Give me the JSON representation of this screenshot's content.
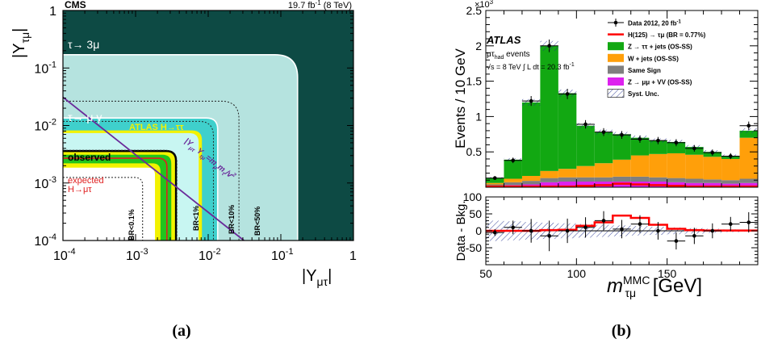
{
  "panel_a": {
    "label": "(a)",
    "experiment": "CMS",
    "luminosity": "19.7 fb",
    "luminosity_exp": "-1",
    "energy": "(8 TeV)",
    "ylabel_main": "|Y",
    "ylabel_sub": "τμ",
    "xlabel_main": "|Y",
    "xlabel_sub": "μτ",
    "colors": {
      "outer": "#0d4a44",
      "mid": "#b5e3df",
      "cyan": "#3fd0cc",
      "white": "#ffffff",
      "yellow": "#f2f200",
      "green": "#22c41d",
      "excl": "#c8f6f2"
    },
    "chart_data": {
      "type": "contour",
      "x_scale": "log",
      "y_scale": "log",
      "xlim": [
        0.0001,
        1
      ],
      "ylim": [
        0.0001,
        1
      ],
      "x_ticks": [
        "10^-4",
        "10^-3",
        "10^-2",
        "10^-1",
        "1"
      ],
      "y_ticks": [
        "10^-4",
        "10^-3",
        "10^-2",
        "10^-1",
        "1"
      ],
      "annotations": [
        {
          "text": "τ→ 3μ",
          "corner": 0.17
        },
        {
          "text": "τ→ μ γ",
          "corner": 0.0135
        },
        {
          "text": "ATLAS H→ττ",
          "corner": 0.0082
        },
        {
          "text": "observed",
          "corner": 0.0036
        },
        {
          "text": "expected",
          "corner": 0.0024
        },
        {
          "text": "H→μτ"
        },
        {
          "text": "BR<0.1%",
          "corner": 0.00125
        },
        {
          "text": "BR<1%",
          "corner": 0.0037
        },
        {
          "text": "BR<10%",
          "corner": 0.0118
        },
        {
          "text": "BR<50%",
          "corner": 0.0265
        }
      ],
      "naturalness_label": "|Y",
      "naturalness_label_rest": "=m",
      "naturalness_label_tail": "m",
      "naturalness_label_end": "/v",
      "naturalness_label_exp": "2",
      "naturalness_label_sub1": "μτ",
      "naturalness_label_sub2": "τμ",
      "naturalness_label_sub3": "μ",
      "naturalness_label_sub4": "τ",
      "naturalness_label_mid": " Y"
    }
  },
  "panel_b": {
    "label": "(b)",
    "experiment": "ATLAS",
    "channel": "μτ",
    "channel_sub": "had",
    "channel_rest": " events",
    "energy_text": "√s = 8 TeV",
    "lumi_text": "∫ L dt = 20.3 fb",
    "lumi_exp": "-1",
    "scale_base": "×10",
    "scale_exp": "3",
    "ylabel_top": "Events / 10 GeV",
    "ylabel_bottom": "Data - Bkg.",
    "xlabel_main": "m",
    "xlabel_sup": "MMC",
    "xlabel_sub": "τμ",
    "xlabel_unit": " [GeV]",
    "legend": [
      {
        "text": "Data 2012, 20 fb",
        "exp": "-1",
        "kind": "data"
      },
      {
        "text": "H(125) → τμ (BR = 0.77%)",
        "kind": "line",
        "color": "#ff0000"
      },
      {
        "text": "Z → ττ + jets (OS-SS)",
        "kind": "box",
        "color": "#12a812"
      },
      {
        "text": "W + jets (OS-SS)",
        "kind": "box",
        "color": "#ff9f0a"
      },
      {
        "text": "Same Sign",
        "kind": "box",
        "color": "#7f7f7f"
      },
      {
        "text": "Z → μμ + VV (OS-SS)",
        "kind": "box",
        "color": "#dd22ee"
      },
      {
        "text": "Syst. Unc.",
        "kind": "hatch",
        "color": "#000000"
      }
    ],
    "chart_data": {
      "type": "bar",
      "stacked": true,
      "bins_edges": [
        50,
        60,
        70,
        80,
        90,
        100,
        110,
        120,
        130,
        140,
        150,
        160,
        170,
        180,
        190,
        200
      ],
      "xlim": [
        50,
        200
      ],
      "ylim": [
        0,
        2.5
      ],
      "y_unit_scale": "x10^3",
      "x_ticks": [
        50,
        100,
        150
      ],
      "y_ticks": [
        0.5,
        1,
        1.5,
        2,
        2.5
      ],
      "series": [
        {
          "name": "Z → μμ + VV (OS-SS)",
          "color": "#dd22ee",
          "values": [
            0.02,
            0.03,
            0.04,
            0.07,
            0.08,
            0.08,
            0.08,
            0.08,
            0.08,
            0.08,
            0.07,
            0.06,
            0.06,
            0.05,
            0.06
          ]
        },
        {
          "name": "Same Sign",
          "color": "#7f7f7f",
          "values": [
            0.02,
            0.04,
            0.05,
            0.06,
            0.06,
            0.06,
            0.06,
            0.07,
            0.07,
            0.06,
            0.06,
            0.06,
            0.05,
            0.05,
            0.06
          ]
        },
        {
          "name": "W + jets (OS-SS)",
          "color": "#ff9f0a",
          "values": [
            0.02,
            0.05,
            0.07,
            0.1,
            0.12,
            0.16,
            0.2,
            0.24,
            0.3,
            0.33,
            0.35,
            0.34,
            0.32,
            0.3,
            0.58
          ]
        },
        {
          "name": "Z → ττ + jets (OS-SS)",
          "color": "#12a812",
          "values": [
            0.07,
            0.27,
            1.04,
            1.77,
            1.07,
            0.57,
            0.44,
            0.36,
            0.25,
            0.19,
            0.16,
            0.11,
            0.07,
            0.04,
            0.1
          ]
        }
      ],
      "data_points": [
        0.13,
        0.38,
        1.22,
        2.0,
        1.32,
        0.89,
        0.78,
        0.74,
        0.68,
        0.66,
        0.63,
        0.55,
        0.49,
        0.44,
        0.87
      ],
      "signal": [
        0.01,
        0.01,
        0.01,
        0.01,
        0.01,
        0.02,
        0.03,
        0.05,
        0.04,
        0.03,
        0.02,
        0.01,
        0.01,
        0.01,
        0.01
      ],
      "ratio": {
        "ylim": [
          -100,
          100
        ],
        "y_ticks": [
          -50,
          0,
          50,
          100
        ],
        "data_minus_bkg": [
          -5,
          10,
          0,
          -15,
          0,
          10,
          30,
          5,
          20,
          0,
          -30,
          -15,
          0,
          20,
          25
        ],
        "errors": [
          10,
          20,
          35,
          45,
          36,
          30,
          28,
          27,
          26,
          26,
          25,
          24,
          22,
          21,
          30
        ],
        "signal": [
          0,
          0,
          0,
          2,
          3,
          15,
          25,
          45,
          38,
          18,
          6,
          2,
          1,
          1,
          1
        ],
        "syst_band": [
          30,
          28,
          26,
          24,
          22,
          20,
          18,
          16,
          14,
          12,
          10,
          8,
          6,
          4,
          2
        ]
      }
    }
  }
}
